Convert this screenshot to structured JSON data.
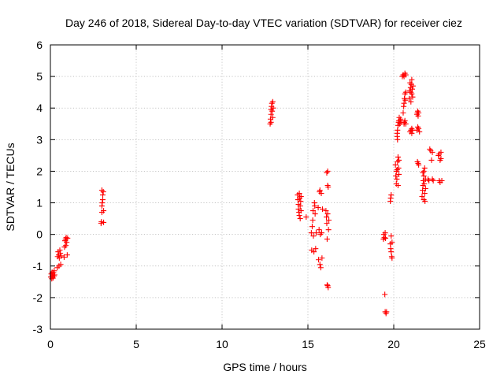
{
  "chart_data": {
    "type": "scatter",
    "title": "Day 246 of 2018, Sidereal Day-to-day VTEC variation (SDTVAR) for receiver ciez",
    "xlabel": "GPS time / hours",
    "ylabel": "SDTVAR / TECUs",
    "xlim": [
      0,
      25
    ],
    "ylim": [
      -3,
      6
    ],
    "xticks": [
      0,
      5,
      10,
      15,
      20,
      25
    ],
    "yticks": [
      -3,
      -2,
      -1,
      0,
      1,
      2,
      3,
      4,
      5,
      6
    ],
    "grid": true,
    "marker": "plus",
    "color": "#ff0000",
    "series": [
      {
        "name": "SDTVAR",
        "points": [
          [
            0.02,
            -1.35
          ],
          [
            0.05,
            -1.25
          ],
          [
            0.08,
            -1.4
          ],
          [
            0.1,
            -1.2
          ],
          [
            0.12,
            -1.3
          ],
          [
            0.15,
            -1.38
          ],
          [
            0.18,
            -1.22
          ],
          [
            0.2,
            -1.32
          ],
          [
            0.22,
            -1.15
          ],
          [
            0.25,
            -1.28
          ],
          [
            0.4,
            -1.05
          ],
          [
            0.42,
            -0.7
          ],
          [
            0.45,
            -0.55
          ],
          [
            0.48,
            -0.65
          ],
          [
            0.5,
            -1.0
          ],
          [
            0.52,
            -0.75
          ],
          [
            0.55,
            -0.5
          ],
          [
            0.58,
            -0.6
          ],
          [
            0.6,
            -0.95
          ],
          [
            0.62,
            -0.68
          ],
          [
            0.8,
            -0.72
          ],
          [
            0.82,
            -0.4
          ],
          [
            0.85,
            -0.2
          ],
          [
            0.88,
            -0.15
          ],
          [
            0.9,
            -0.35
          ],
          [
            0.92,
            -0.1
          ],
          [
            0.95,
            -0.25
          ],
          [
            0.98,
            -0.65
          ],
          [
            1.0,
            -0.12
          ],
          [
            2.95,
            0.35
          ],
          [
            2.97,
            0.4
          ],
          [
            3.0,
            0.7
          ],
          [
            3.0,
            0.9
          ],
          [
            3.02,
            1.0
          ],
          [
            3.05,
            1.1
          ],
          [
            3.05,
            1.25
          ],
          [
            3.08,
            1.35
          ],
          [
            3.1,
            0.75
          ],
          [
            3.1,
            0.38
          ],
          [
            3.0,
            1.4
          ],
          [
            12.8,
            3.5
          ],
          [
            12.82,
            3.65
          ],
          [
            12.85,
            3.8
          ],
          [
            12.85,
            3.95
          ],
          [
            12.88,
            4.05
          ],
          [
            12.9,
            4.15
          ],
          [
            12.92,
            3.9
          ],
          [
            12.95,
            4.2
          ],
          [
            12.95,
            3.7
          ],
          [
            12.98,
            4.0
          ],
          [
            12.85,
            3.55
          ],
          [
            14.4,
            1.25
          ],
          [
            14.42,
            1.1
          ],
          [
            14.45,
            0.95
          ],
          [
            14.45,
            0.8
          ],
          [
            14.48,
            0.7
          ],
          [
            14.5,
            0.6
          ],
          [
            14.5,
            1.3
          ],
          [
            14.52,
            1.15
          ],
          [
            14.55,
            0.5
          ],
          [
            14.55,
            0.9
          ],
          [
            14.58,
            1.05
          ],
          [
            14.6,
            0.75
          ],
          [
            14.6,
            1.2
          ],
          [
            14.9,
            0.55
          ],
          [
            15.2,
            0.05
          ],
          [
            15.22,
            -0.5
          ],
          [
            15.25,
            0.25
          ],
          [
            15.28,
            0.45
          ],
          [
            15.3,
            0.75
          ],
          [
            15.32,
            -0.05
          ],
          [
            15.35,
            -0.55
          ],
          [
            15.38,
            1.0
          ],
          [
            15.4,
            0.9
          ],
          [
            15.42,
            0.65
          ],
          [
            15.45,
            -0.45
          ],
          [
            15.48,
            0.05
          ],
          [
            15.6,
            0.85
          ],
          [
            15.62,
            -0.8
          ],
          [
            15.65,
            0.15
          ],
          [
            15.68,
            1.35
          ],
          [
            15.7,
            -0.95
          ],
          [
            15.72,
            0.0
          ],
          [
            15.75,
            -1.05
          ],
          [
            15.78,
            1.3
          ],
          [
            15.8,
            0.05
          ],
          [
            15.82,
            -0.75
          ],
          [
            15.85,
            0.8
          ],
          [
            15.7,
            1.4
          ],
          [
            16.05,
            0.75
          ],
          [
            16.08,
            0.55
          ],
          [
            16.1,
            0.35
          ],
          [
            16.12,
            -0.15
          ],
          [
            16.15,
            0.65
          ],
          [
            16.15,
            1.55
          ],
          [
            16.18,
            1.5
          ],
          [
            16.2,
            0.15
          ],
          [
            16.22,
            0.45
          ],
          [
            16.1,
            1.95
          ],
          [
            16.15,
            2.0
          ],
          [
            16.12,
            -1.6
          ],
          [
            16.18,
            -1.68
          ],
          [
            16.15,
            -1.62
          ],
          [
            19.4,
            -0.15
          ],
          [
            19.42,
            0.0
          ],
          [
            19.45,
            -0.1
          ],
          [
            19.48,
            -1.9
          ],
          [
            19.5,
            -2.45
          ],
          [
            19.55,
            -2.5
          ],
          [
            19.58,
            -2.45
          ],
          [
            19.5,
            0.05
          ],
          [
            19.52,
            -0.12
          ],
          [
            19.8,
            1.05
          ],
          [
            19.82,
            1.15
          ],
          [
            19.85,
            1.25
          ],
          [
            19.8,
            -0.3
          ],
          [
            19.82,
            -0.45
          ],
          [
            19.85,
            -0.55
          ],
          [
            19.88,
            -0.7
          ],
          [
            19.9,
            -0.75
          ],
          [
            19.85,
            -0.05
          ],
          [
            19.9,
            -0.25
          ],
          [
            20.1,
            2.2
          ],
          [
            20.12,
            1.85
          ],
          [
            20.15,
            2.0
          ],
          [
            20.15,
            1.6
          ],
          [
            20.18,
            1.75
          ],
          [
            20.2,
            2.05
          ],
          [
            20.22,
            2.3
          ],
          [
            20.25,
            2.45
          ],
          [
            20.25,
            1.55
          ],
          [
            20.28,
            2.1
          ],
          [
            20.3,
            2.35
          ],
          [
            20.3,
            1.9
          ],
          [
            20.2,
            3.2
          ],
          [
            20.22,
            3.3
          ],
          [
            20.25,
            3.45
          ],
          [
            20.28,
            3.55
          ],
          [
            20.3,
            3.6
          ],
          [
            20.32,
            3.7
          ],
          [
            20.35,
            3.5
          ],
          [
            20.38,
            3.6
          ],
          [
            20.4,
            3.65
          ],
          [
            20.42,
            3.55
          ],
          [
            20.2,
            3.1
          ],
          [
            20.22,
            3.0
          ],
          [
            20.6,
            3.5
          ],
          [
            20.62,
            3.55
          ],
          [
            20.65,
            3.6
          ],
          [
            20.7,
            3.5
          ],
          [
            20.55,
            3.85
          ],
          [
            20.58,
            4.05
          ],
          [
            20.6,
            4.15
          ],
          [
            20.62,
            4.3
          ],
          [
            20.65,
            4.45
          ],
          [
            20.68,
            4.25
          ],
          [
            20.7,
            4.5
          ],
          [
            20.5,
            5.0
          ],
          [
            20.55,
            5.05
          ],
          [
            20.6,
            5.0
          ],
          [
            20.65,
            5.1
          ],
          [
            20.7,
            5.05
          ],
          [
            20.9,
            4.3
          ],
          [
            20.92,
            4.55
          ],
          [
            20.95,
            4.8
          ],
          [
            20.98,
            4.65
          ],
          [
            21.0,
            4.5
          ],
          [
            21.0,
            4.2
          ],
          [
            21.02,
            4.75
          ],
          [
            21.05,
            4.45
          ],
          [
            21.05,
            4.9
          ],
          [
            21.08,
            4.6
          ],
          [
            21.1,
            4.35
          ],
          [
            21.12,
            4.7
          ],
          [
            20.95,
            3.25
          ],
          [
            21.0,
            3.3
          ],
          [
            21.05,
            3.35
          ],
          [
            21.1,
            3.3
          ],
          [
            21.05,
            3.2
          ],
          [
            21.35,
            3.8
          ],
          [
            21.38,
            3.85
          ],
          [
            21.4,
            3.9
          ],
          [
            21.42,
            3.75
          ],
          [
            21.45,
            3.85
          ],
          [
            21.35,
            3.3
          ],
          [
            21.4,
            3.4
          ],
          [
            21.45,
            3.35
          ],
          [
            21.5,
            3.25
          ],
          [
            21.38,
            2.3
          ],
          [
            21.42,
            2.25
          ],
          [
            21.45,
            2.2
          ],
          [
            21.65,
            1.2
          ],
          [
            21.68,
            1.4
          ],
          [
            21.7,
            1.55
          ],
          [
            21.72,
            1.7
          ],
          [
            21.75,
            1.85
          ],
          [
            21.78,
            1.6
          ],
          [
            21.8,
            1.3
          ],
          [
            21.82,
            1.05
          ],
          [
            21.85,
            1.45
          ],
          [
            21.75,
            2.0
          ],
          [
            21.7,
            1.95
          ],
          [
            21.8,
            2.1
          ],
          [
            21.85,
            1.75
          ],
          [
            21.75,
            1.1
          ],
          [
            22.0,
            1.75
          ],
          [
            22.05,
            1.7
          ],
          [
            22.1,
            2.7
          ],
          [
            22.15,
            2.65
          ],
          [
            22.2,
            2.35
          ],
          [
            22.25,
            1.75
          ],
          [
            22.3,
            1.7
          ],
          [
            22.25,
            2.6
          ],
          [
            22.6,
            2.5
          ],
          [
            22.65,
            2.55
          ],
          [
            22.7,
            2.35
          ],
          [
            22.75,
            2.6
          ],
          [
            22.65,
            1.7
          ],
          [
            22.7,
            1.65
          ],
          [
            22.8,
            1.7
          ],
          [
            22.75,
            2.4
          ]
        ]
      }
    ]
  }
}
